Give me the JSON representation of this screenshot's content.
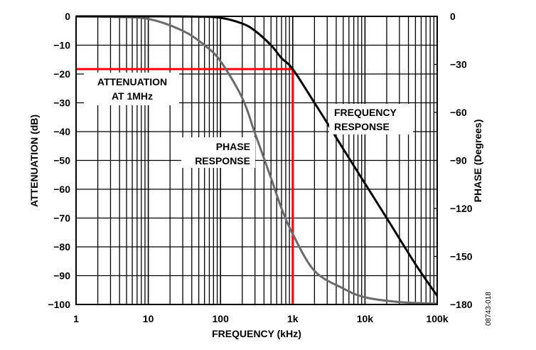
{
  "chart_data": {
    "type": "line",
    "xscale": "log",
    "xlim": [
      1,
      100000
    ],
    "ylim": [
      -100,
      0
    ],
    "y2lim": [
      -180,
      0
    ],
    "grid": true,
    "xlabel": "FREQUENCY (kHz)",
    "ylabel": "ATTENUATION (dB)",
    "y2label": "PHASE (Degrees)",
    "xticks": [
      {
        "v": 1,
        "label": "1"
      },
      {
        "v": 10,
        "label": "10"
      },
      {
        "v": 100,
        "label": "100"
      },
      {
        "v": 1000,
        "label": "1k"
      },
      {
        "v": 10000,
        "label": "10k"
      },
      {
        "v": 100000,
        "label": "100k"
      }
    ],
    "yticks": [
      "0",
      "−10",
      "−20",
      "−30",
      "−40",
      "−50",
      "−60",
      "−70",
      "−80",
      "−90",
      "−100"
    ],
    "y2ticks": [
      "0",
      "−30",
      "−60",
      "−90",
      "−120",
      "−150",
      "−180"
    ],
    "series": [
      {
        "name": "FREQUENCY RESPONSE",
        "axis": "left",
        "color": "#000000",
        "x": [
          1,
          10,
          50,
          100,
          200,
          300,
          500,
          700,
          1000,
          2000,
          3000,
          5000,
          10000,
          20000,
          50000,
          100000
        ],
        "y": [
          0,
          0,
          -0.1,
          -0.5,
          -2.5,
          -5,
          -10,
          -14.5,
          -18.3,
          -30,
          -37,
          -46,
          -58,
          -70,
          -86,
          -97
        ]
      },
      {
        "name": "PHASE RESPONSE",
        "axis": "right",
        "color": "#6b6b6b",
        "x": [
          1,
          3,
          10,
          30,
          60,
          100,
          200,
          300,
          500,
          700,
          1000,
          2000,
          5000,
          10000,
          30000,
          100000
        ],
        "y": [
          0,
          -0.3,
          -1.6,
          -9,
          -18,
          -28,
          -51,
          -73,
          -101,
          -120,
          -136,
          -159,
          -170,
          -175.5,
          -178.5,
          -179.5
        ]
      }
    ],
    "annotations": [
      {
        "text_lines": [
          "ATTENUATION",
          "AT 1MHz"
        ],
        "marker_x": 1000,
        "marker_y": -18.3,
        "color": "#ff0000"
      },
      {
        "text_lines": [
          "FREQUENCY",
          "RESPONSE"
        ]
      },
      {
        "text_lines": [
          "PHASE",
          "RESPONSE"
        ]
      }
    ],
    "figure_id": "08743-018"
  }
}
